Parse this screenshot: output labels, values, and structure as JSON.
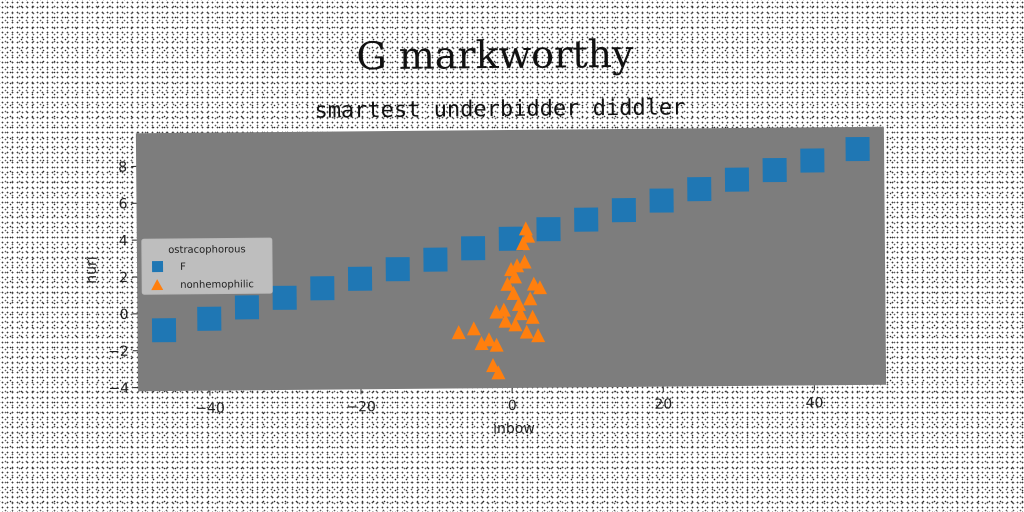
{
  "chart_data": {
    "type": "scatter",
    "title": "G markworthy",
    "subtitle": "smartest underbidder diddler",
    "xlabel": "inbow",
    "ylabel": "nuri",
    "xlim": [
      -49.5,
      49.5
    ],
    "ylim": [
      -4.2,
      9.8
    ],
    "xticks": [
      -40,
      -20,
      0,
      20,
      40
    ],
    "yticks": [
      -4,
      -2,
      0,
      2,
      4,
      6,
      8
    ],
    "grid": false,
    "plot_background": "#7d7d7d",
    "legend": {
      "title": "ostracophorous",
      "placement": "center-left",
      "entries": [
        "F",
        "nonhemophilic"
      ]
    },
    "series": [
      {
        "name": "F",
        "marker": "square",
        "color": "#1f77b4",
        "x": [
          -46,
          -40,
          -35,
          -30,
          -25,
          -20,
          -15,
          -10,
          -5,
          0,
          5,
          10,
          15,
          20,
          25,
          30,
          35,
          40,
          46
        ],
        "y": [
          -0.9,
          -0.3,
          0.3,
          0.8,
          1.3,
          1.8,
          2.3,
          2.8,
          3.4,
          3.9,
          4.4,
          4.9,
          5.4,
          5.9,
          6.5,
          7.0,
          7.5,
          8.0,
          8.6
        ]
      },
      {
        "name": "nonhemophilic",
        "marker": "triangle",
        "color": "#ff7f0e",
        "x": [
          2.0,
          2.3,
          1.6,
          0.8,
          0.0,
          -0.5,
          0.5,
          1.8,
          3.0,
          3.8,
          2.5,
          1.0,
          -1.0,
          -2.0,
          -3.0,
          -5.0,
          -7.0,
          -4.0,
          -2.0,
          0.5,
          2.0,
          3.5,
          1.2,
          -0.8,
          0.3,
          2.8,
          -1.8,
          -2.5
        ],
        "y": [
          4.4,
          4.0,
          3.6,
          2.4,
          2.2,
          1.4,
          1.8,
          2.6,
          1.4,
          1.2,
          0.6,
          0.3,
          0.0,
          -0.1,
          -1.6,
          -1.0,
          -1.2,
          -1.8,
          -1.9,
          -0.8,
          -1.2,
          -1.4,
          -0.2,
          -0.6,
          0.9,
          -0.4,
          -3.4,
          -3.0
        ]
      }
    ]
  }
}
